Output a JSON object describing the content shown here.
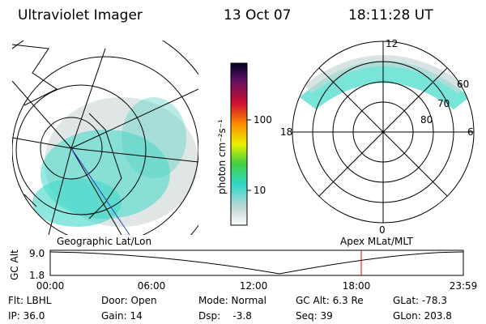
{
  "header": {
    "title": "Ultraviolet Imager",
    "date": "13 Oct 07",
    "time": "18:11:28 UT"
  },
  "left_panel": {
    "caption": "Geographic Lat/Lon"
  },
  "colorbar": {
    "label": "photon cm⁻²s⁻¹",
    "ticks": [
      "100",
      "10"
    ]
  },
  "right_panel": {
    "caption": "Apex MLat/MLT",
    "labels": [
      "12",
      "60",
      "70",
      "80",
      "18",
      "6",
      "0"
    ]
  },
  "altitude_plot": {
    "axis_label": "GC Alt",
    "y_labels": [
      "9.0",
      "1.8"
    ],
    "x_labels": [
      "00:00",
      "06:00",
      "12:00",
      "18:00",
      "23:59"
    ]
  },
  "status": {
    "rows": [
      [
        "Flt: LBHL",
        "Door: Open",
        "Mode: Normal",
        "GC Alt: 6.3 Re",
        "GLat: -78.3"
      ],
      [
        "IP: 36.0",
        "Gain: 14",
        "Dsp:    -3.8",
        "Seq: 39",
        "GLon: 203.8"
      ]
    ]
  }
}
